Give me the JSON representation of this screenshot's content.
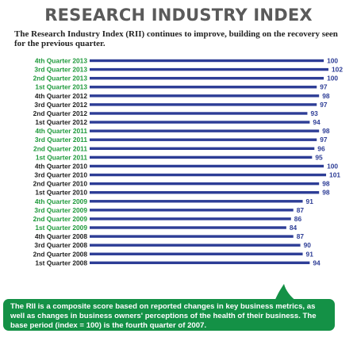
{
  "header": {
    "title": "RESEARCH INDUSTRY INDEX",
    "subtitle": "The Research Industry Index (RII) continues to improve, building on the recovery seen for the previous quarter."
  },
  "footnote": {
    "text": "The RII is a composite score based on reported changes in key business metrics, as well as changes in business owners' perceptions of the health of their business. The base period (index = 100) is the fourth quarter of 2007."
  },
  "colors": {
    "bar": "#2d3d96",
    "value_label": "#2d3d96",
    "label_green": "#1f9a3c",
    "label_dark": "#222222",
    "note_background": "#149146"
  },
  "chart_data": {
    "type": "bar",
    "orientation": "horizontal",
    "title": "RESEARCH INDUSTRY INDEX",
    "categories": [
      "4th Quarter 2013",
      "3rd Quarter 2013",
      "2nd Quarter 2013",
      "1st Quarter 2013",
      "4th Quarter 2012",
      "3rd Quarter 2012",
      "2nd Quarter 2012",
      "1st Quarter 2012",
      "4th Quarter 2011",
      "3rd Quarter 2011",
      "2nd Quarter 2011",
      "1st Quarter 2011",
      "4th Quarter 2010",
      "3rd Quarter 2010",
      "2nd Quarter 2010",
      "1st Quarter 2010",
      "4th Quarter 2009",
      "3rd Quarter 2009",
      "2nd Quarter 2009",
      "1st Quarter 2009",
      "4th Quarter 2008",
      "3rd Quarter 2008",
      "2nd Quarter 2008",
      "1st Quarter 2008"
    ],
    "values": [
      100,
      102,
      100,
      97,
      98,
      97,
      93,
      94,
      98,
      97,
      96,
      95,
      100,
      101,
      98,
      98,
      91,
      87,
      86,
      84,
      87,
      90,
      91,
      94
    ],
    "label_colors": [
      "green",
      "green",
      "green",
      "green",
      "dark",
      "dark",
      "dark",
      "dark",
      "green",
      "green",
      "green",
      "green",
      "dark",
      "dark",
      "dark",
      "dark",
      "green",
      "green",
      "green",
      "green",
      "dark",
      "dark",
      "dark",
      "dark"
    ],
    "xlim": [
      0,
      102
    ],
    "grid": false,
    "legend": "none",
    "value_labels": true
  }
}
